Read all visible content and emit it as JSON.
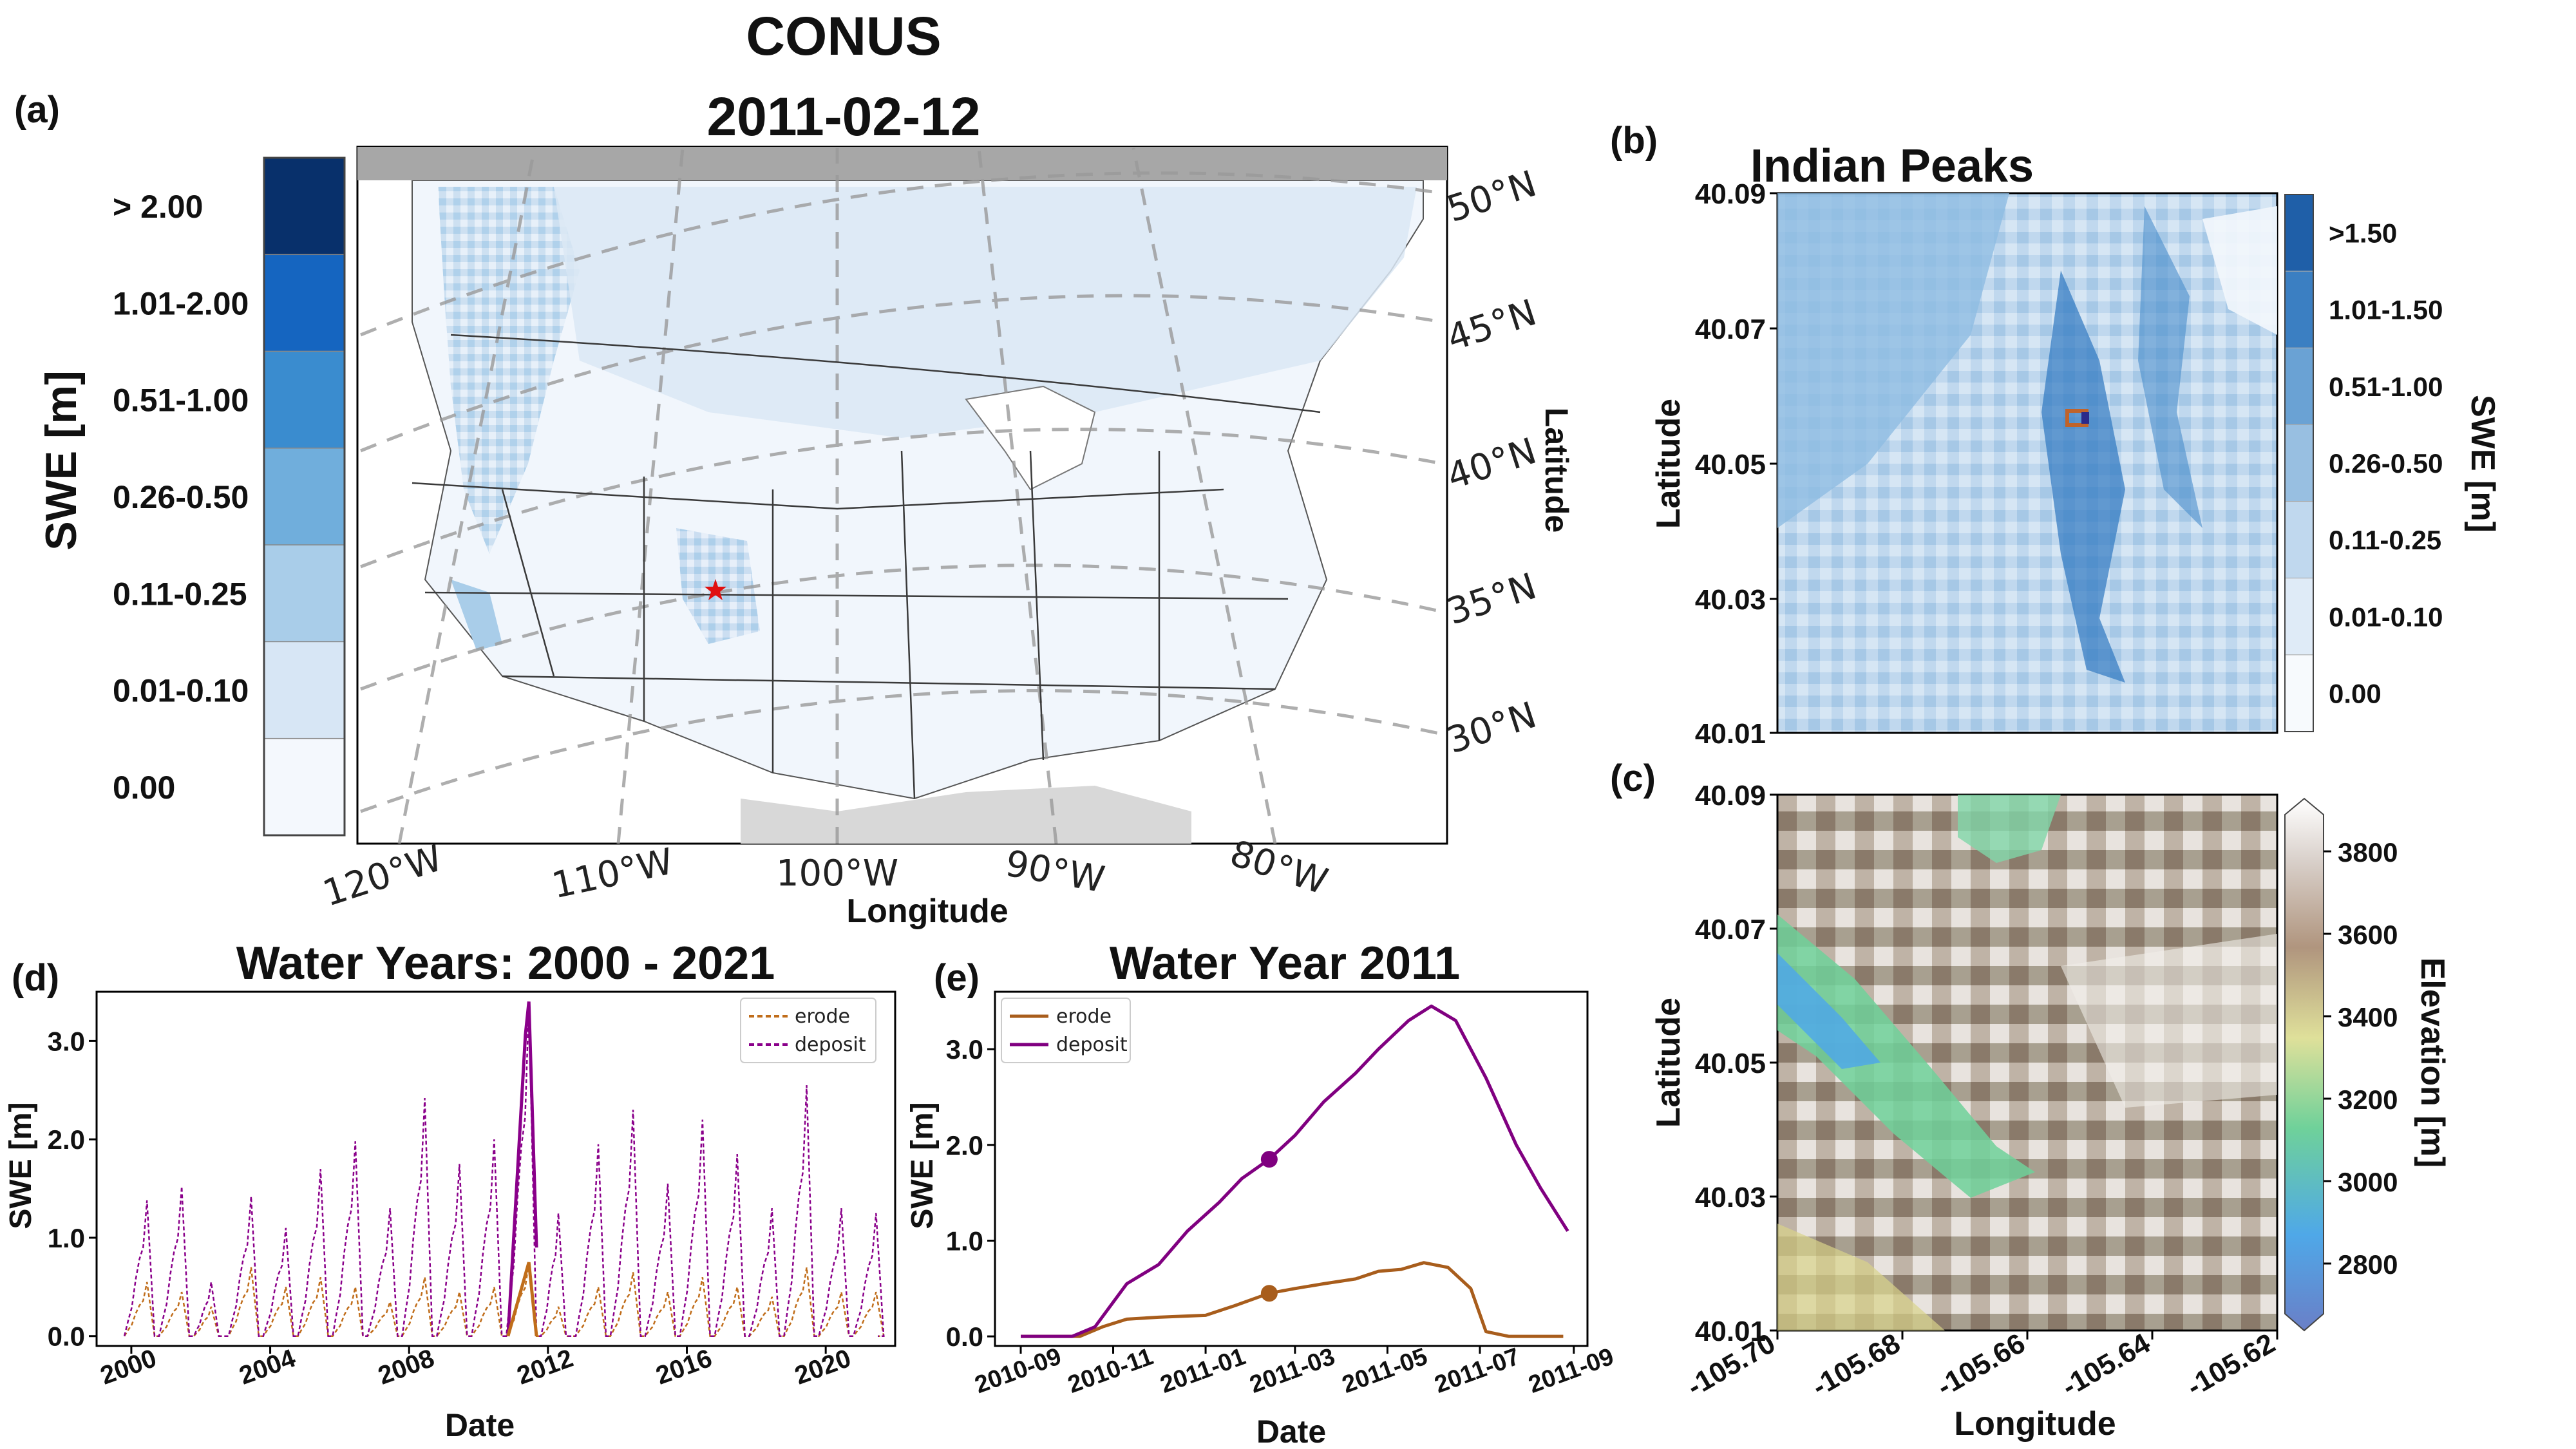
{
  "panels": {
    "a": {
      "label": "(a)",
      "title_line1": "CONUS",
      "title_line2": "2011-02-12",
      "colorbar_label": "SWE [m]",
      "colorbar_bins": [
        "> 2.00",
        "1.01-2.00",
        "0.51-1.00",
        "0.26-0.50",
        "0.11-0.25",
        "0.01-0.10",
        "0.00"
      ],
      "colorbar_colors": [
        "#08306b",
        "#1565c0",
        "#3a8ccf",
        "#70aedc",
        "#a9cde9",
        "#d7e6f5",
        "#f4f8fd"
      ],
      "lon_ticks": [
        "120°W",
        "110°W",
        "100°W",
        "90°W",
        "80°W"
      ],
      "lat_ticks": [
        "50°N",
        "45°N",
        "40°N",
        "35°N",
        "30°N"
      ],
      "xlabel": "Longitude",
      "ylabel": "Latitude",
      "marker": "red-star"
    },
    "b": {
      "label": "(b)",
      "title": "Indian Peaks",
      "ylabel": "Latitude",
      "yticks": [
        "40.09",
        "40.07",
        "40.05",
        "40.03",
        "40.01"
      ],
      "colorbar_label": "SWE [m]",
      "colorbar_bins": [
        ">1.50",
        "1.01-1.50",
        "0.51-1.00",
        "0.26-0.50",
        "0.11-0.25",
        "0.01-0.10",
        "0.00"
      ],
      "colorbar_colors": [
        "#1f5fa8",
        "#3b7fc2",
        "#6aa2d4",
        "#98bfe1",
        "#c0d8ee",
        "#dfebf7",
        "#f7fafd"
      ]
    },
    "c": {
      "label": "(c)",
      "ylabel": "Latitude",
      "xlabel": "Longitude",
      "yticks": [
        "40.09",
        "40.07",
        "40.05",
        "40.03",
        "40.01"
      ],
      "xticks": [
        "-105.70",
        "-105.68",
        "-105.66",
        "-105.64",
        "-105.62"
      ],
      "colorbar_label": "Elevation [m]",
      "colorbar_ticks": [
        "3800",
        "3600",
        "3400",
        "3200",
        "3000",
        "2800"
      ]
    },
    "d": {
      "label": "(d)",
      "title": "Water Years: 2000 - 2021",
      "xlabel": "Date",
      "ylabel": "SWE [m]",
      "xticks": [
        "2000",
        "2004",
        "2008",
        "2012",
        "2016",
        "2020"
      ],
      "yticks": [
        "0.0",
        "1.0",
        "2.0",
        "3.0"
      ],
      "legend": [
        "erode",
        "deposit"
      ]
    },
    "e": {
      "label": "(e)",
      "title": "Water Year 2011",
      "xlabel": "Date",
      "ylabel": "SWE [m]",
      "xticks": [
        "2010-09",
        "2010-11",
        "2011-01",
        "2011-03",
        "2011-05",
        "2011-07",
        "2011-09"
      ],
      "yticks": [
        "0.0",
        "1.0",
        "2.0",
        "3.0"
      ],
      "legend": [
        "erode",
        "deposit"
      ]
    }
  },
  "chart_data": [
    {
      "type": "line",
      "panel": "d",
      "title": "Water Years: 2000 - 2021",
      "xlabel": "Date",
      "ylabel": "SWE [m]",
      "xlim": [
        1999.0,
        2022.0
      ],
      "ylim": [
        -0.1,
        3.5
      ],
      "legend_placement": "top-right",
      "peaks": [
        {
          "year": 2000.45,
          "deposit": 1.38,
          "erode": 0.55
        },
        {
          "year": 2001.45,
          "deposit": 1.52,
          "erode": 0.45
        },
        {
          "year": 2002.3,
          "deposit": 0.55,
          "erode": 0.3
        },
        {
          "year": 2003.45,
          "deposit": 1.42,
          "erode": 0.7
        },
        {
          "year": 2004.45,
          "deposit": 1.1,
          "erode": 0.5
        },
        {
          "year": 2005.45,
          "deposit": 1.7,
          "erode": 0.6
        },
        {
          "year": 2006.45,
          "deposit": 1.98,
          "erode": 0.5
        },
        {
          "year": 2007.45,
          "deposit": 1.3,
          "erode": 0.35
        },
        {
          "year": 2008.45,
          "deposit": 2.42,
          "erode": 0.6
        },
        {
          "year": 2009.45,
          "deposit": 1.75,
          "erode": 0.45
        },
        {
          "year": 2010.45,
          "deposit": 2.0,
          "erode": 0.5
        },
        {
          "year": 2011.45,
          "deposit": 3.4,
          "erode": 0.75
        },
        {
          "year": 2012.3,
          "deposit": 1.25,
          "erode": 0.3
        },
        {
          "year": 2013.45,
          "deposit": 1.95,
          "erode": 0.5
        },
        {
          "year": 2014.45,
          "deposit": 2.3,
          "erode": 0.65
        },
        {
          "year": 2015.45,
          "deposit": 1.55,
          "erode": 0.45
        },
        {
          "year": 2016.45,
          "deposit": 2.2,
          "erode": 0.6
        },
        {
          "year": 2017.45,
          "deposit": 1.85,
          "erode": 0.5
        },
        {
          "year": 2018.45,
          "deposit": 1.3,
          "erode": 0.4
        },
        {
          "year": 2019.45,
          "deposit": 2.55,
          "erode": 0.7
        },
        {
          "year": 2020.45,
          "deposit": 1.3,
          "erode": 0.45
        },
        {
          "year": 2021.45,
          "deposit": 1.25,
          "erode": 0.45
        }
      ],
      "series": [
        {
          "name": "erode",
          "color": "#c06d1a",
          "style": "dashed"
        },
        {
          "name": "deposit",
          "color": "#8a008a",
          "style": "dashed"
        }
      ]
    },
    {
      "type": "line",
      "panel": "e",
      "title": "Water Year 2011",
      "xlabel": "Date",
      "ylabel": "SWE [m]",
      "x_unit": "date",
      "ylim": [
        -0.1,
        3.6
      ],
      "legend_placement": "top-left",
      "series": [
        {
          "name": "erode",
          "color": "#a85d1c",
          "points": [
            [
              "2010-09-01",
              0.0
            ],
            [
              "2010-10-10",
              0.0
            ],
            [
              "2010-10-25",
              0.1
            ],
            [
              "2010-11-10",
              0.18
            ],
            [
              "2010-12-01",
              0.2
            ],
            [
              "2011-01-01",
              0.22
            ],
            [
              "2011-01-20",
              0.32
            ],
            [
              "2011-02-12",
              0.45
            ],
            [
              "2011-03-01",
              0.5
            ],
            [
              "2011-03-20",
              0.55
            ],
            [
              "2011-04-10",
              0.6
            ],
            [
              "2011-04-25",
              0.68
            ],
            [
              "2011-05-10",
              0.7
            ],
            [
              "2011-05-25",
              0.77
            ],
            [
              "2011-06-10",
              0.72
            ],
            [
              "2011-06-25",
              0.5
            ],
            [
              "2011-07-05",
              0.05
            ],
            [
              "2011-07-20",
              0.0
            ],
            [
              "2011-08-25",
              0.0
            ]
          ]
        },
        {
          "name": "deposit",
          "color": "#800080",
          "points": [
            [
              "2010-09-01",
              0.0
            ],
            [
              "2010-10-05",
              0.0
            ],
            [
              "2010-10-20",
              0.1
            ],
            [
              "2010-11-10",
              0.55
            ],
            [
              "2010-12-01",
              0.75
            ],
            [
              "2010-12-20",
              1.1
            ],
            [
              "2011-01-10",
              1.4
            ],
            [
              "2011-01-25",
              1.65
            ],
            [
              "2011-02-12",
              1.85
            ],
            [
              "2011-03-01",
              2.1
            ],
            [
              "2011-03-20",
              2.45
            ],
            [
              "2011-04-10",
              2.75
            ],
            [
              "2011-04-25",
              3.0
            ],
            [
              "2011-05-15",
              3.3
            ],
            [
              "2011-05-30",
              3.45
            ],
            [
              "2011-06-15",
              3.3
            ],
            [
              "2011-07-05",
              2.7
            ],
            [
              "2011-07-25",
              2.0
            ],
            [
              "2011-08-10",
              1.55
            ],
            [
              "2011-08-28",
              1.1
            ]
          ]
        }
      ],
      "markers": [
        {
          "series": "deposit",
          "x": "2011-02-12",
          "y": 1.85
        },
        {
          "series": "erode",
          "x": "2011-02-12",
          "y": 0.45
        }
      ]
    }
  ]
}
